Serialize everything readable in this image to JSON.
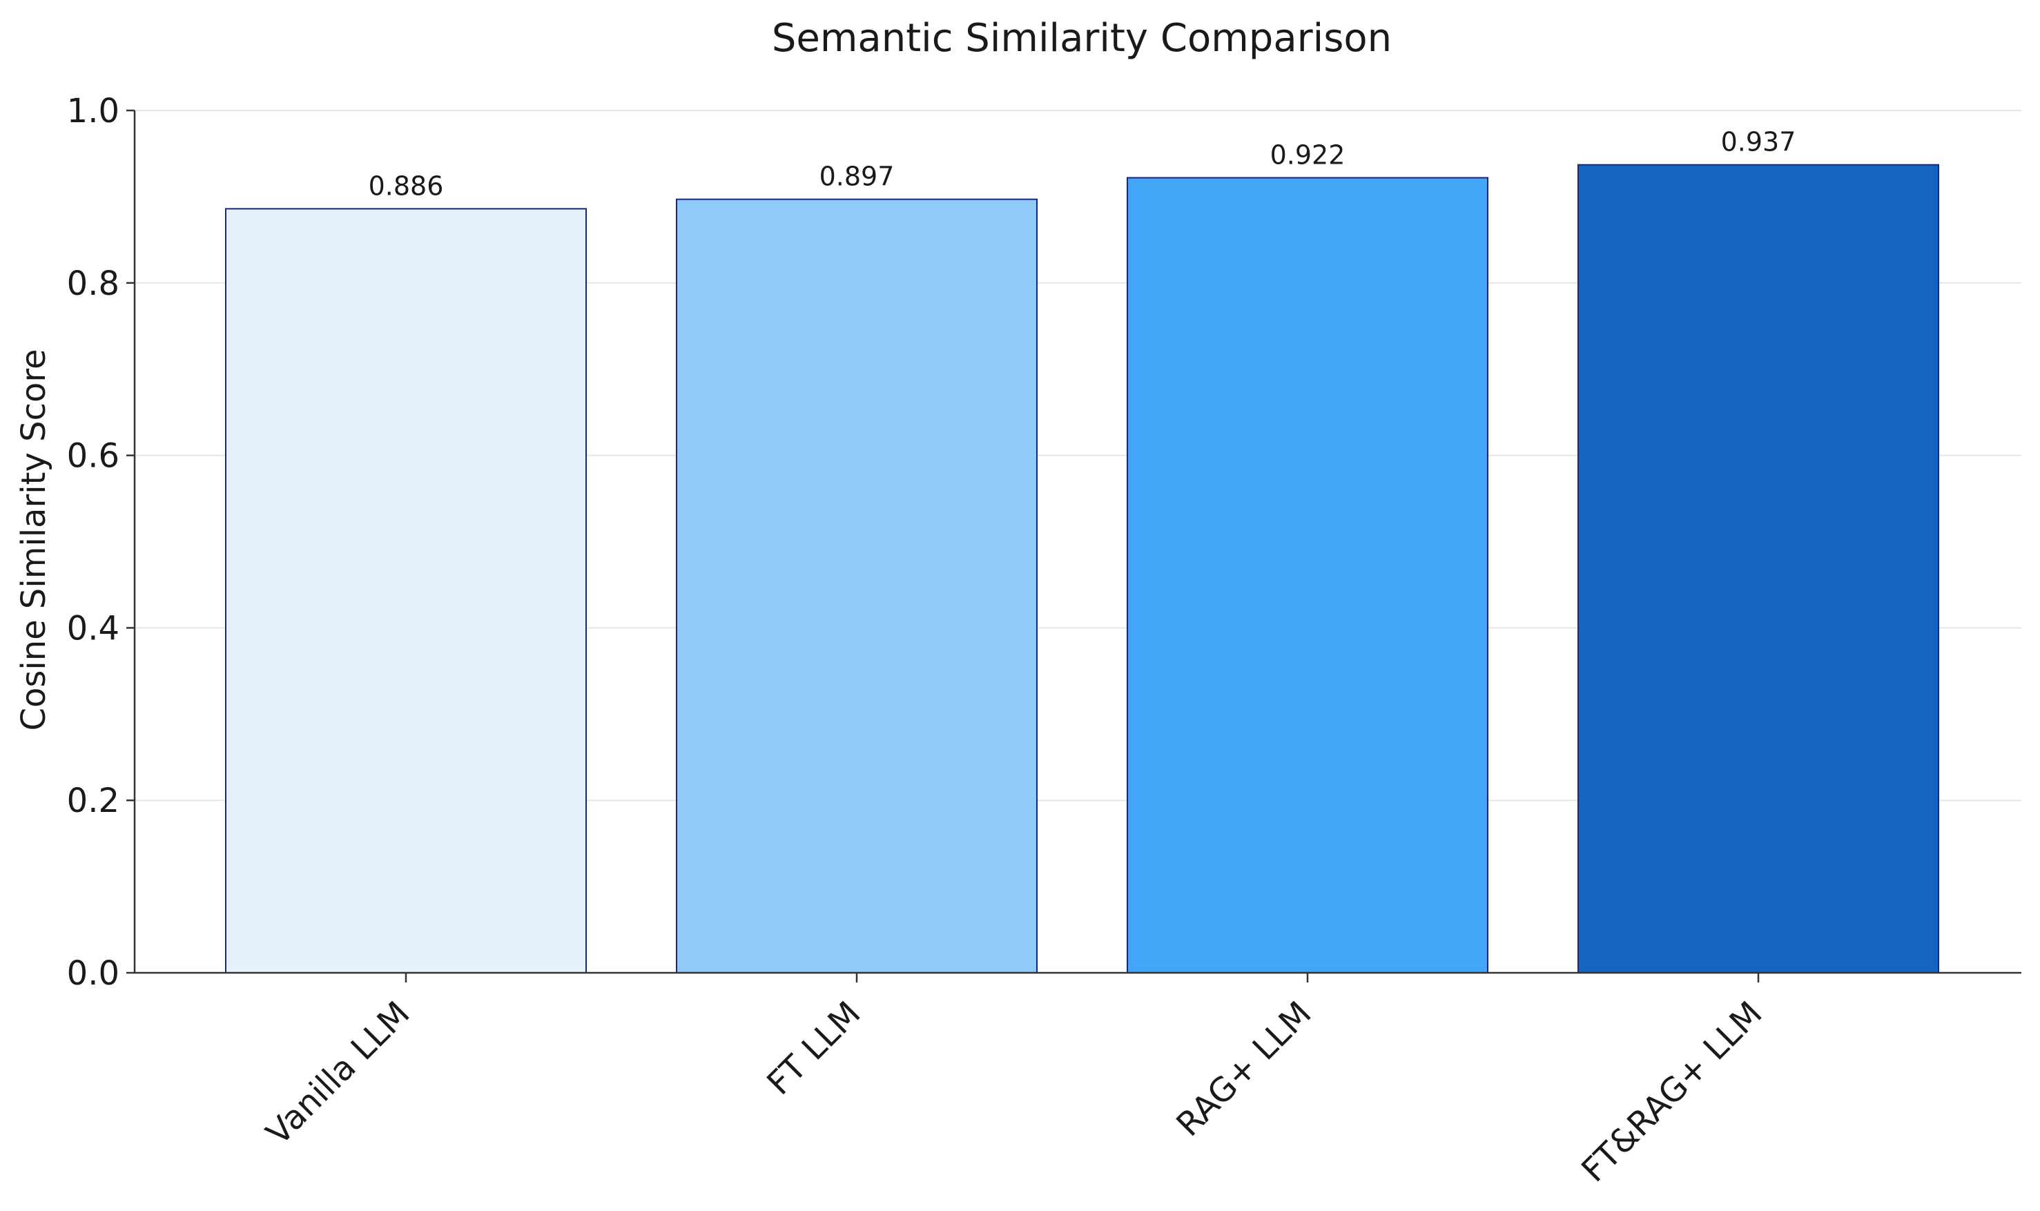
{
  "chart_data": {
    "type": "bar",
    "title": "Semantic Similarity Comparison",
    "xlabel": "",
    "ylabel": "Cosine Similarity Score",
    "categories": [
      "Vanilla LLM",
      "FT LLM",
      "RAG+ LLM",
      "FT&RAG+ LLM"
    ],
    "values": [
      0.886,
      0.897,
      0.922,
      0.937
    ],
    "value_labels": [
      "0.886",
      "0.897",
      "0.922",
      "0.937"
    ],
    "colors": [
      "#e3f2fd",
      "#90caf9",
      "#42a5f5",
      "#1565c0"
    ],
    "edge_color": "#1a237e",
    "ylim": [
      0,
      1.0
    ],
    "yticks": [
      0.0,
      0.2,
      0.4,
      0.6,
      0.8,
      1.0
    ],
    "ytick_labels": [
      "0.0",
      "0.2",
      "0.4",
      "0.6",
      "0.8",
      "1.0"
    ],
    "grid": "y-only",
    "legend": "none"
  }
}
